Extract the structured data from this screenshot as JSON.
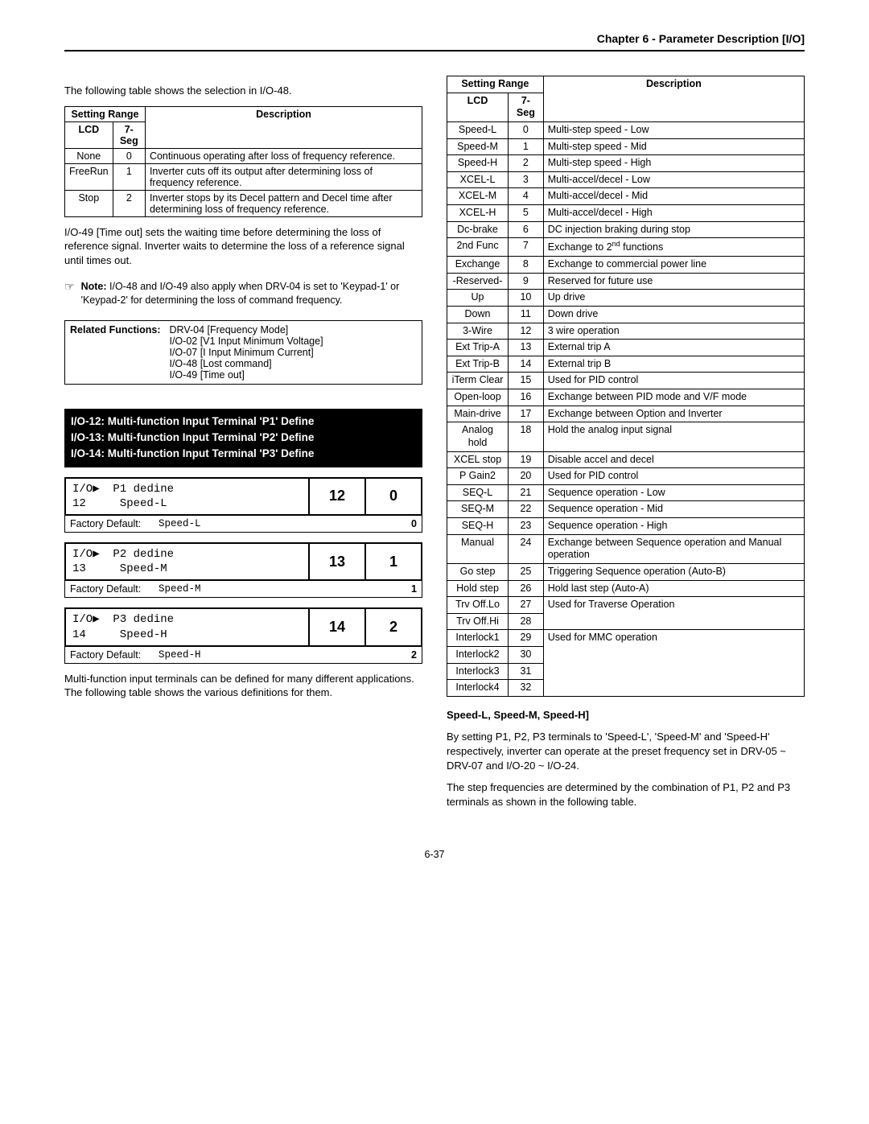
{
  "header": "Chapter 6 - Parameter Description [I/O]",
  "introText": "The following table shows the selection in I/O-48.",
  "table48": {
    "headers": {
      "range": "Setting Range",
      "lcd": "LCD",
      "seg": "7-Seg",
      "desc": "Description"
    },
    "rows": [
      {
        "lcd": "None",
        "seg": "0",
        "desc": "Continuous operating after loss of frequency reference."
      },
      {
        "lcd": "FreeRun",
        "seg": "1",
        "desc": "Inverter cuts off its output after determining loss of frequency reference."
      },
      {
        "lcd": "Stop",
        "seg": "2",
        "desc": "Inverter stops by its Decel pattern and Decel time after determining loss of frequency reference."
      }
    ]
  },
  "io49Text": "I/O-49 [Time out] sets the waiting time before determining the loss of reference signal. Inverter waits to determine the loss of a reference signal until times out.",
  "note": {
    "symbol": "☞",
    "label": "Note:",
    "text": "I/O-48 and I/O-49 also apply when DRV-04 is set to 'Keypad-1' or 'Keypad-2' for determining the loss of command frequency."
  },
  "related": {
    "label": "Related Functions:",
    "items": [
      "DRV-04 [Frequency Mode]",
      "I/O-02 [V1 Input Minimum Voltage]",
      "I/O-07 [I Input Minimum Current]",
      "I/O-48 [Lost command]",
      "I/O-49 [Time out]"
    ]
  },
  "banner": [
    "I/O-12: Multi-function Input Terminal 'P1' Define",
    "I/O-13: Multi-function Input Terminal 'P2' Define",
    "I/O-14: Multi-function Input Terminal 'P3' Define"
  ],
  "params": [
    {
      "lcd1": "I/O▶  P1 dedine",
      "lcd2": "12     Speed-L",
      "n1": "12",
      "n2": "0",
      "fd": "Speed-L",
      "fdn": "0"
    },
    {
      "lcd1": "I/O▶  P2 dedine",
      "lcd2": "13     Speed-M",
      "n1": "13",
      "n2": "1",
      "fd": "Speed-M",
      "fdn": "1"
    },
    {
      "lcd1": "I/O▶  P3 dedine",
      "lcd2": "14     Speed-H",
      "n1": "14",
      "n2": "2",
      "fd": "Speed-H",
      "fdn": "2"
    }
  ],
  "factoryLabel": "Factory Default:",
  "multiFuncText": "Multi-function input terminals can be defined for many different applications. The following table shows the various definitions for them.",
  "bigTable": {
    "headers": {
      "range": "Setting Range",
      "lcd": "LCD",
      "seg": "7-Seg",
      "desc": "Description"
    },
    "rows": [
      {
        "lcd": "Speed-L",
        "seg": "0",
        "desc": "Multi-step speed - Low",
        "span": 1
      },
      {
        "lcd": "Speed-M",
        "seg": "1",
        "desc": "Multi-step speed - Mid",
        "span": 1
      },
      {
        "lcd": "Speed-H",
        "seg": "2",
        "desc": "Multi-step speed - High",
        "span": 1
      },
      {
        "lcd": "XCEL-L",
        "seg": "3",
        "desc": "Multi-accel/decel - Low",
        "span": 1
      },
      {
        "lcd": "XCEL-M",
        "seg": "4",
        "desc": "Multi-accel/decel - Mid",
        "span": 1
      },
      {
        "lcd": "XCEL-H",
        "seg": "5",
        "desc": "Multi-accel/decel - High",
        "span": 1
      },
      {
        "lcd": "Dc-brake",
        "seg": "6",
        "desc": "DC injection braking during stop",
        "span": 1
      },
      {
        "lcd": "2nd Func",
        "seg": "7",
        "desc": "Exchange to 2<sup>nd</sup> functions",
        "span": 1,
        "html": true
      },
      {
        "lcd": "Exchange",
        "seg": "8",
        "desc": "Exchange to commercial power line",
        "span": 1
      },
      {
        "lcd": "-Reserved-",
        "seg": "9",
        "desc": "Reserved for future use",
        "span": 1
      },
      {
        "lcd": "Up",
        "seg": "10",
        "desc": "Up drive",
        "span": 1
      },
      {
        "lcd": "Down",
        "seg": "11",
        "desc": "Down drive",
        "span": 1
      },
      {
        "lcd": "3-Wire",
        "seg": "12",
        "desc": "3 wire operation",
        "span": 1
      },
      {
        "lcd": "Ext Trip-A",
        "seg": "13",
        "desc": "External trip A",
        "span": 1
      },
      {
        "lcd": "Ext Trip-B",
        "seg": "14",
        "desc": "External trip B",
        "span": 1
      },
      {
        "lcd": "iTerm Clear",
        "seg": "15",
        "desc": "Used for PID control",
        "span": 1
      },
      {
        "lcd": "Open-loop",
        "seg": "16",
        "desc": "Exchange between PID mode and V/F mode",
        "span": 1
      },
      {
        "lcd": "Main-drive",
        "seg": "17",
        "desc": "Exchange between Option and Inverter",
        "span": 1
      },
      {
        "lcd": "Analog hold",
        "seg": "18",
        "desc": "Hold the analog input signal",
        "span": 1
      },
      {
        "lcd": "XCEL stop",
        "seg": "19",
        "desc": "Disable accel and decel",
        "span": 1
      },
      {
        "lcd": "P Gain2",
        "seg": "20",
        "desc": "Used for PID control",
        "span": 1
      },
      {
        "lcd": "SEQ-L",
        "seg": "21",
        "desc": "Sequence operation - Low",
        "span": 1
      },
      {
        "lcd": "SEQ-M",
        "seg": "22",
        "desc": "Sequence operation - Mid",
        "span": 1
      },
      {
        "lcd": "SEQ-H",
        "seg": "23",
        "desc": "Sequence operation - High",
        "span": 1
      },
      {
        "lcd": "Manual",
        "seg": "24",
        "desc": "Exchange between Sequence operation and Manual operation",
        "span": 1
      },
      {
        "lcd": "Go step",
        "seg": "25",
        "desc": "Triggering Sequence operation (Auto-B)",
        "span": 1
      },
      {
        "lcd": "Hold step",
        "seg": "26",
        "desc": "Hold last step (Auto-A)",
        "span": 1
      },
      {
        "lcd": "Trv Off.Lo",
        "seg": "27",
        "desc": "Used for Traverse Operation",
        "span": 2
      },
      {
        "lcd": "Trv Off.Hi",
        "seg": "28"
      },
      {
        "lcd": "Interlock1",
        "seg": "29",
        "desc": "Used for MMC operation",
        "span": 4
      },
      {
        "lcd": "Interlock2",
        "seg": "30"
      },
      {
        "lcd": "Interlock3",
        "seg": "31"
      },
      {
        "lcd": "Interlock4",
        "seg": "32"
      }
    ]
  },
  "speedHdr": "Speed-L, Speed-M, Speed-H]",
  "speedText1": "By setting P1, P2, P3 terminals to 'Speed-L', 'Speed-M' and 'Speed-H' respectively, inverter can operate at the preset frequency set in DRV-05 ~ DRV-07 and I/O-20 ~ I/O-24.",
  "speedText2": "The step frequencies are determined by the combination of P1, P2 and P3 terminals as shown in the following table.",
  "footer": "6-37"
}
